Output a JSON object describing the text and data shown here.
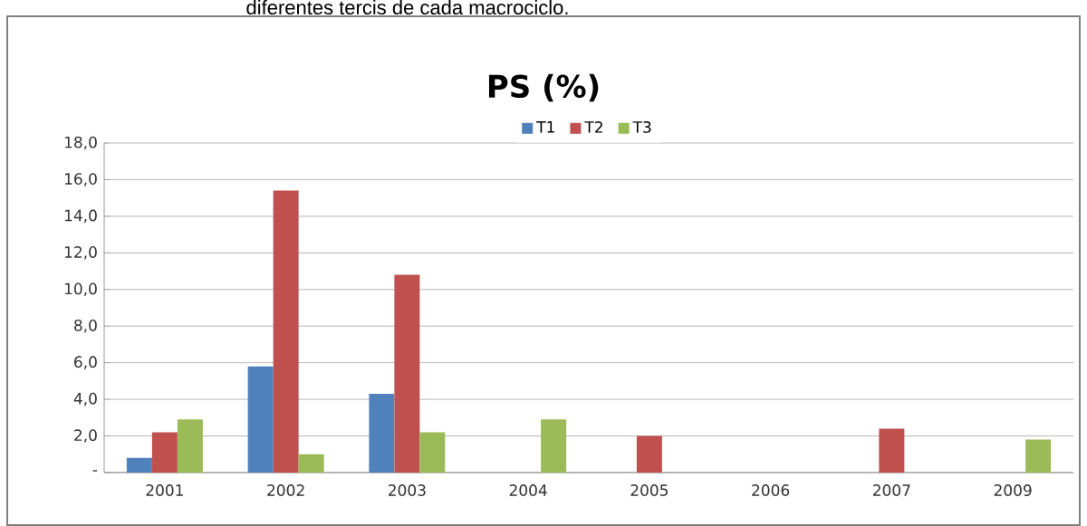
{
  "chart_data": {
    "type": "bar",
    "title": "PS (%)",
    "annotations": [
      "diferentes tercis de cada macrociclo."
    ],
    "categories": [
      "2001",
      "2002",
      "2003",
      "2004",
      "2005",
      "2006",
      "2007",
      "2009"
    ],
    "series": [
      {
        "name": "T1",
        "color": "#4f81bd",
        "values": [
          0.8,
          5.8,
          4.3,
          null,
          null,
          null,
          null,
          null
        ]
      },
      {
        "name": "T2",
        "color": "#c0504d",
        "values": [
          2.2,
          15.4,
          10.8,
          null,
          2.0,
          null,
          2.4,
          null
        ]
      },
      {
        "name": "T3",
        "color": "#9bbb59",
        "values": [
          2.9,
          1.0,
          2.2,
          2.9,
          null,
          null,
          null,
          1.8
        ]
      }
    ],
    "ylim": [
      0,
      18
    ],
    "yticks": [
      {
        "value": 0,
        "label": "-"
      },
      {
        "value": 2,
        "label": "2,0"
      },
      {
        "value": 4,
        "label": "4,0"
      },
      {
        "value": 6,
        "label": "6,0"
      },
      {
        "value": 8,
        "label": "8,0"
      },
      {
        "value": 10,
        "label": "10,0"
      },
      {
        "value": 12,
        "label": "12,0"
      },
      {
        "value": 14,
        "label": "14,0"
      },
      {
        "value": 16,
        "label": "16,0"
      },
      {
        "value": 18,
        "label": "18,0"
      }
    ],
    "grid": "y",
    "legend": "top"
  }
}
